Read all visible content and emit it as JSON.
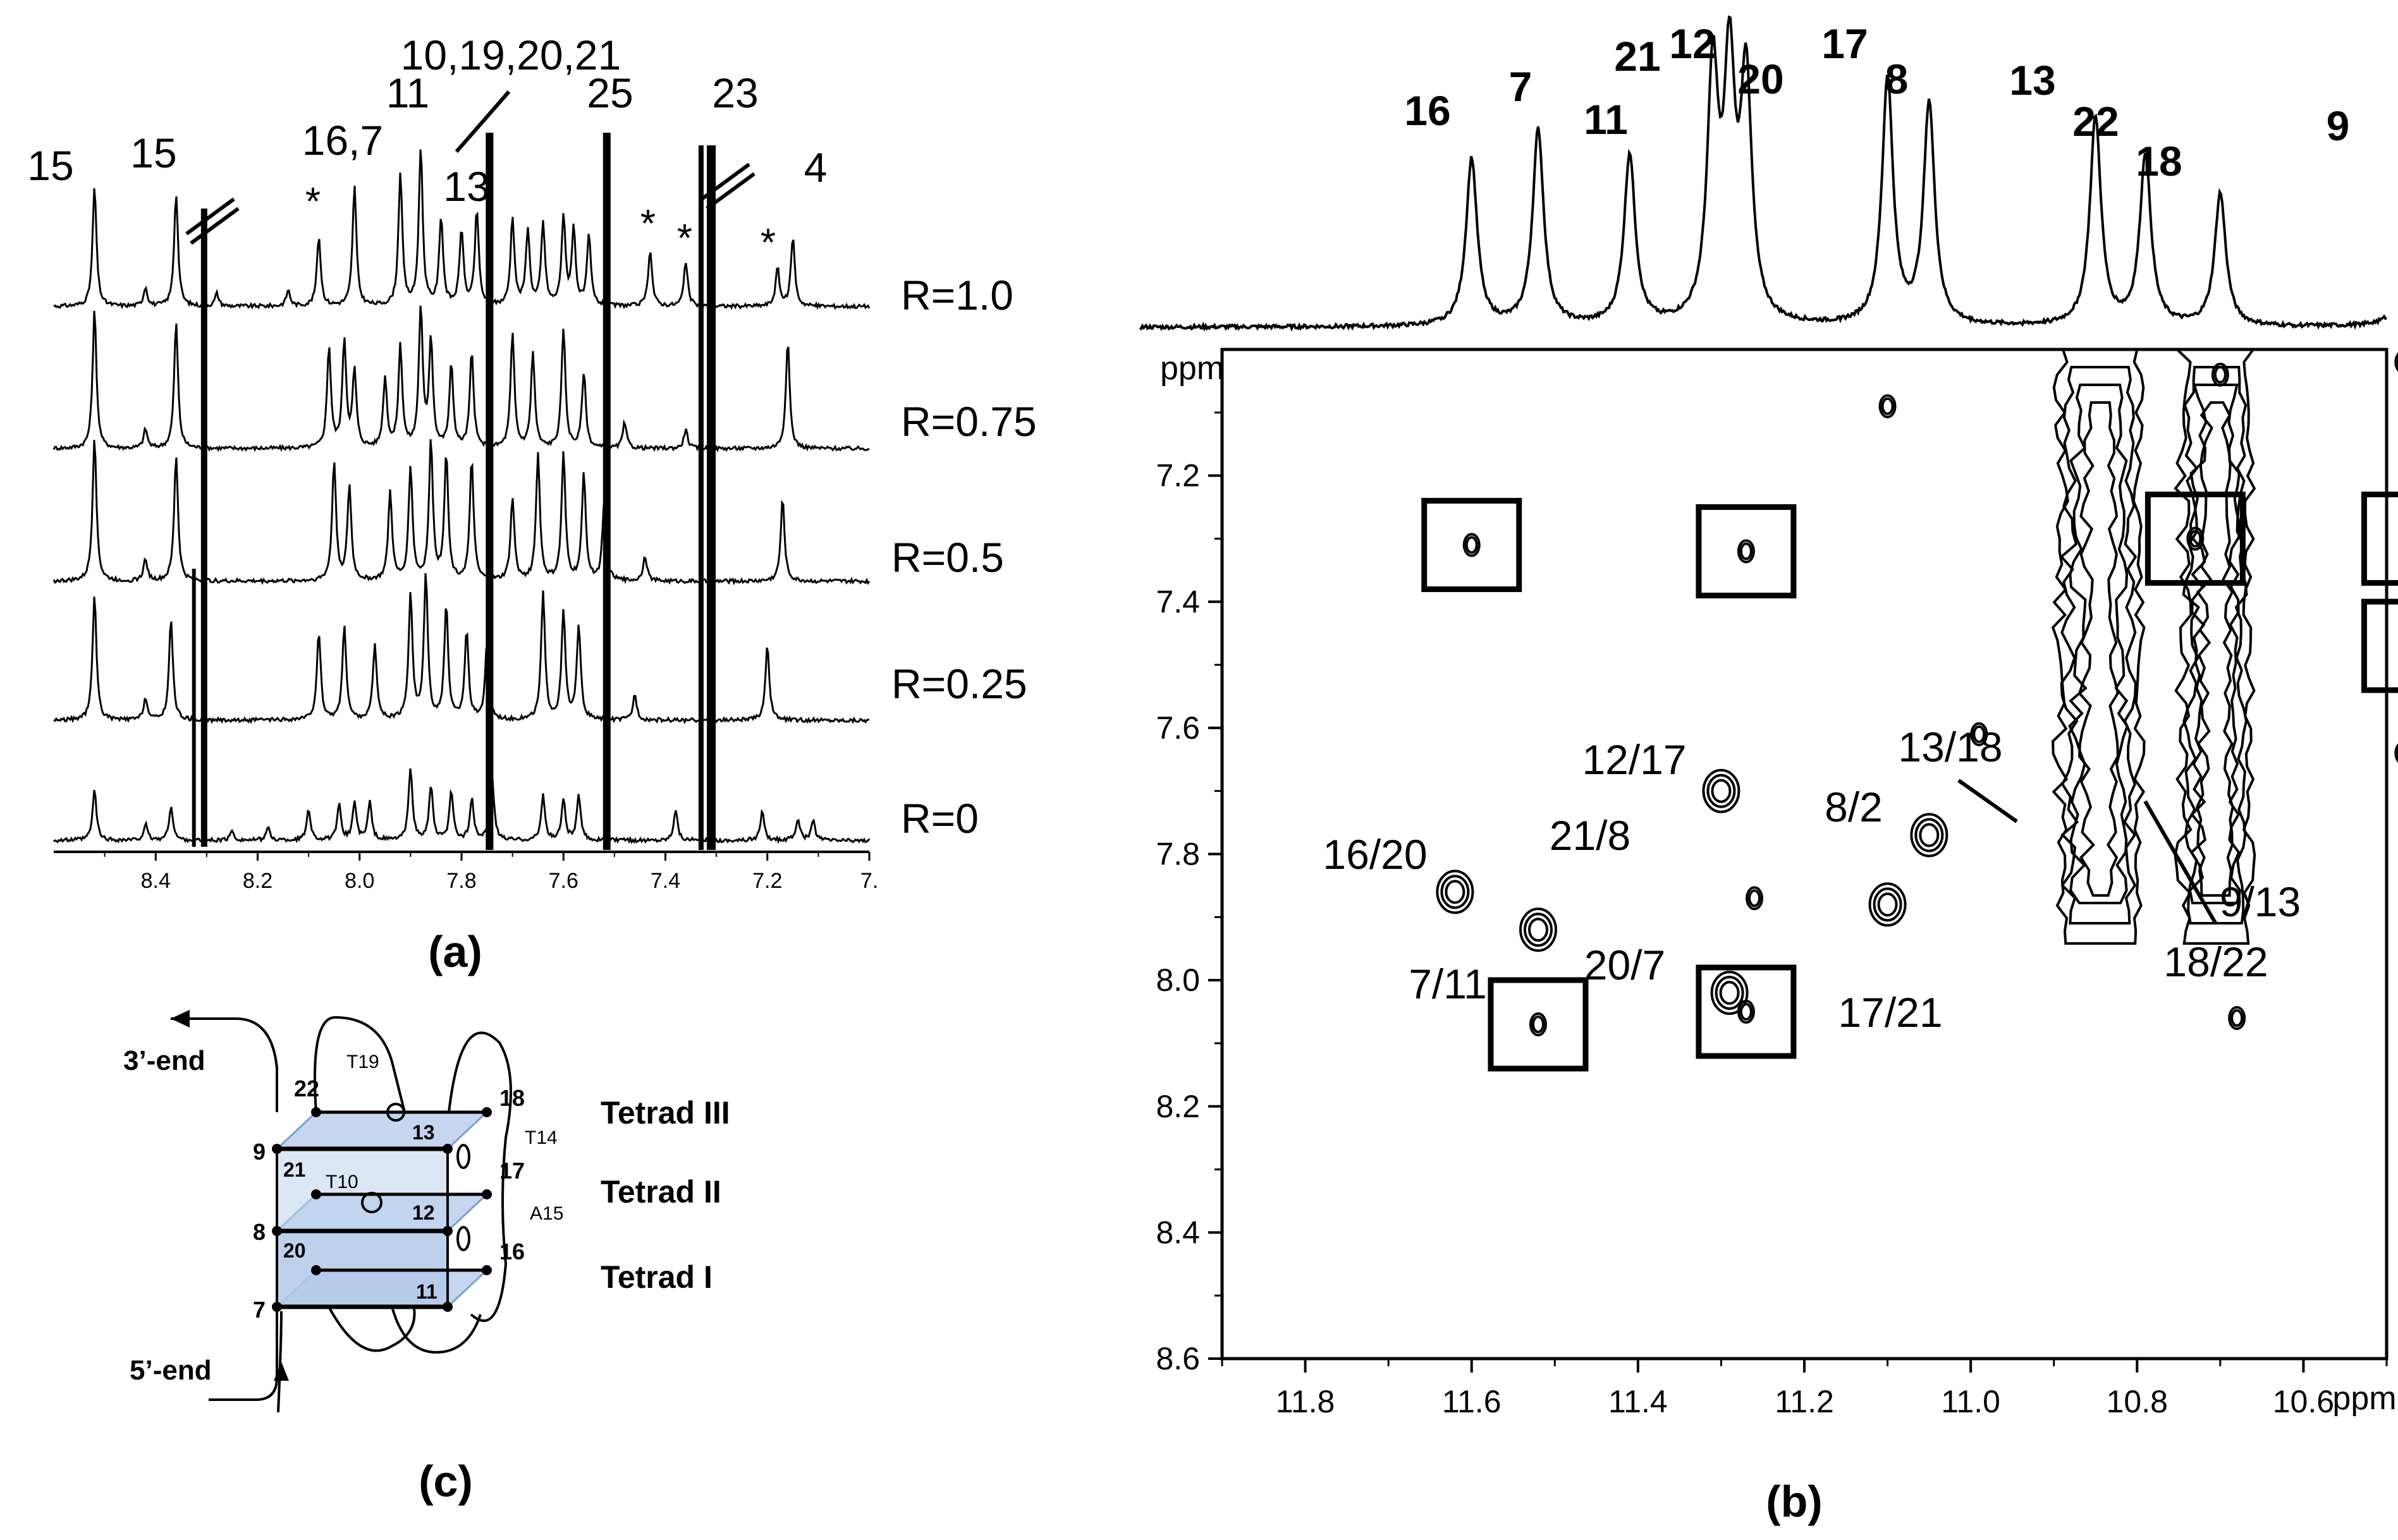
{
  "panels": {
    "a": {
      "label": "(a)",
      "axis_ticks": [
        "8.4",
        "8.2",
        "8.0",
        "7.8",
        "7.6",
        "7.4",
        "7.2",
        "7."
      ],
      "traces": [
        "R=1.0",
        "R=0.75",
        "R=0.5",
        "R=0.25",
        "R=0"
      ],
      "peak_labels": [
        "15",
        "15",
        "16,7",
        "11",
        "10,19,20,21",
        "13",
        "25",
        "23",
        "4"
      ],
      "star_mark": "*"
    },
    "b": {
      "label": "(b)",
      "x_ticks": [
        "11.8",
        "11.6",
        "11.4",
        "11.2",
        "11.0",
        "10.8",
        "10.6"
      ],
      "x_unit": "ppm",
      "y_ticks": [
        "7.2",
        "7.4",
        "7.6",
        "7.8",
        "8.0",
        "8.2",
        "8.4",
        "8.6"
      ],
      "y_unit": "ppm",
      "top_peak_labels": [
        "16",
        "7",
        "11",
        "21",
        "12",
        "20",
        "17",
        "8",
        "13",
        "22",
        "18",
        "9"
      ],
      "crosspeak_labels": [
        "12/17",
        "21/8",
        "16/20",
        "7/11",
        "20/7",
        "8/2",
        "13/18",
        "17/21",
        "9/13",
        "18/22"
      ]
    },
    "c": {
      "label": "(c)",
      "end_labels": [
        "3’-end",
        "5’-end"
      ],
      "tetrad_labels": [
        "Tetrad III",
        "Tetrad II",
        "Tetrad I"
      ],
      "node_labels": [
        "22",
        "9",
        "21",
        "8",
        "20",
        "7",
        "13",
        "12",
        "11",
        "18",
        "17",
        "16",
        "T19",
        "T10",
        "T14",
        "A15"
      ]
    }
  },
  "chart_data": [
    {
      "type": "line",
      "title": "",
      "xlabel": "",
      "ylabel": "",
      "x_axis": "reversed",
      "xlim": [
        8.6,
        7.0
      ],
      "series": [
        {
          "name": "R=1.0"
        },
        {
          "name": "R=0.75"
        },
        {
          "name": "R=0.5"
        },
        {
          "name": "R=0.25"
        },
        {
          "name": "R=0"
        }
      ]
    },
    {
      "type": "scatter",
      "title": "",
      "xlabel": "ppm",
      "ylabel": "ppm",
      "xlim": [
        11.9,
        10.5
      ],
      "ylim": [
        8.6,
        7.0
      ],
      "x_axis": "reversed",
      "points": [
        {
          "x": 11.6,
          "y": 7.31,
          "boxed": true
        },
        {
          "x": 11.27,
          "y": 7.32,
          "boxed": true
        },
        {
          "x": 10.73,
          "y": 7.3,
          "boxed": true
        },
        {
          "x": 10.47,
          "y": 7.3,
          "boxed": true
        },
        {
          "x": 10.47,
          "y": 7.47,
          "boxed": true
        },
        {
          "x": 11.52,
          "y": 8.07,
          "boxed": true
        },
        {
          "x": 11.27,
          "y": 8.05,
          "boxed": true
        },
        {
          "x": 11.1,
          "y": 7.09,
          "boxed": false
        },
        {
          "x": 10.7,
          "y": 7.04,
          "boxed": false
        },
        {
          "x": 10.48,
          "y": 7.02,
          "boxed": false
        },
        {
          "x": 11.3,
          "y": 7.7,
          "boxed": false,
          "label": "12/17 21/8"
        },
        {
          "x": 11.62,
          "y": 7.86,
          "boxed": false,
          "label": "16/20"
        },
        {
          "x": 11.52,
          "y": 7.92,
          "boxed": false,
          "label": "7/11"
        },
        {
          "x": 11.29,
          "y": 8.02,
          "boxed": false,
          "label": "20/7"
        },
        {
          "x": 11.26,
          "y": 7.87,
          "boxed": false
        },
        {
          "x": 11.05,
          "y": 7.77,
          "boxed": false,
          "label": "8/2"
        },
        {
          "x": 11.1,
          "y": 7.88,
          "boxed": false,
          "label": "17/21"
        },
        {
          "x": 10.99,
          "y": 7.61,
          "boxed": false
        },
        {
          "x": 10.48,
          "y": 7.64,
          "boxed": false
        },
        {
          "x": 10.47,
          "y": 7.79,
          "boxed": false
        },
        {
          "x": 10.68,
          "y": 8.06,
          "boxed": false
        },
        {
          "x": 10.85,
          "y": 7.69,
          "boxed": false,
          "label": "13/18"
        },
        {
          "x": 10.7,
          "y": 7.69,
          "boxed": false,
          "label": "9/13 18/22"
        }
      ],
      "projection_peaks": [
        {
          "label": "16",
          "x": 11.6
        },
        {
          "label": "7",
          "x": 11.52
        },
        {
          "label": "11",
          "x": 11.41
        },
        {
          "label": "21",
          "x": 11.31
        },
        {
          "label": "12",
          "x": 11.29
        },
        {
          "label": "20",
          "x": 11.27
        },
        {
          "label": "17",
          "x": 11.1
        },
        {
          "label": "8",
          "x": 11.05
        },
        {
          "label": "13",
          "x": 10.85
        },
        {
          "label": "22",
          "x": 10.79
        },
        {
          "label": "18",
          "x": 10.7
        },
        {
          "label": "9",
          "x": 10.47
        }
      ]
    }
  ]
}
